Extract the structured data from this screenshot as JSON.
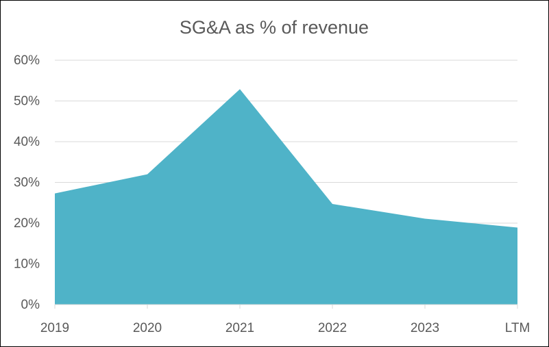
{
  "chart_data": {
    "type": "area",
    "title": "SG&A as % of revenue",
    "xlabel": "",
    "ylabel": "",
    "categories": [
      "2019",
      "2020",
      "2021",
      "2022",
      "2023",
      "LTM"
    ],
    "values": [
      27.3,
      32.0,
      52.9,
      24.7,
      21.1,
      18.9
    ],
    "value_unit": "%",
    "ylim": [
      0,
      60
    ],
    "yticks": [
      0,
      10,
      20,
      30,
      40,
      50,
      60
    ],
    "ytick_labels": [
      "0%",
      "10%",
      "20%",
      "30%",
      "40%",
      "50%",
      "60%"
    ],
    "grid": true,
    "legend": "none",
    "fill_color": "#4fb3c8",
    "grid_color": "#d9d9d9",
    "text_color": "#595959"
  }
}
